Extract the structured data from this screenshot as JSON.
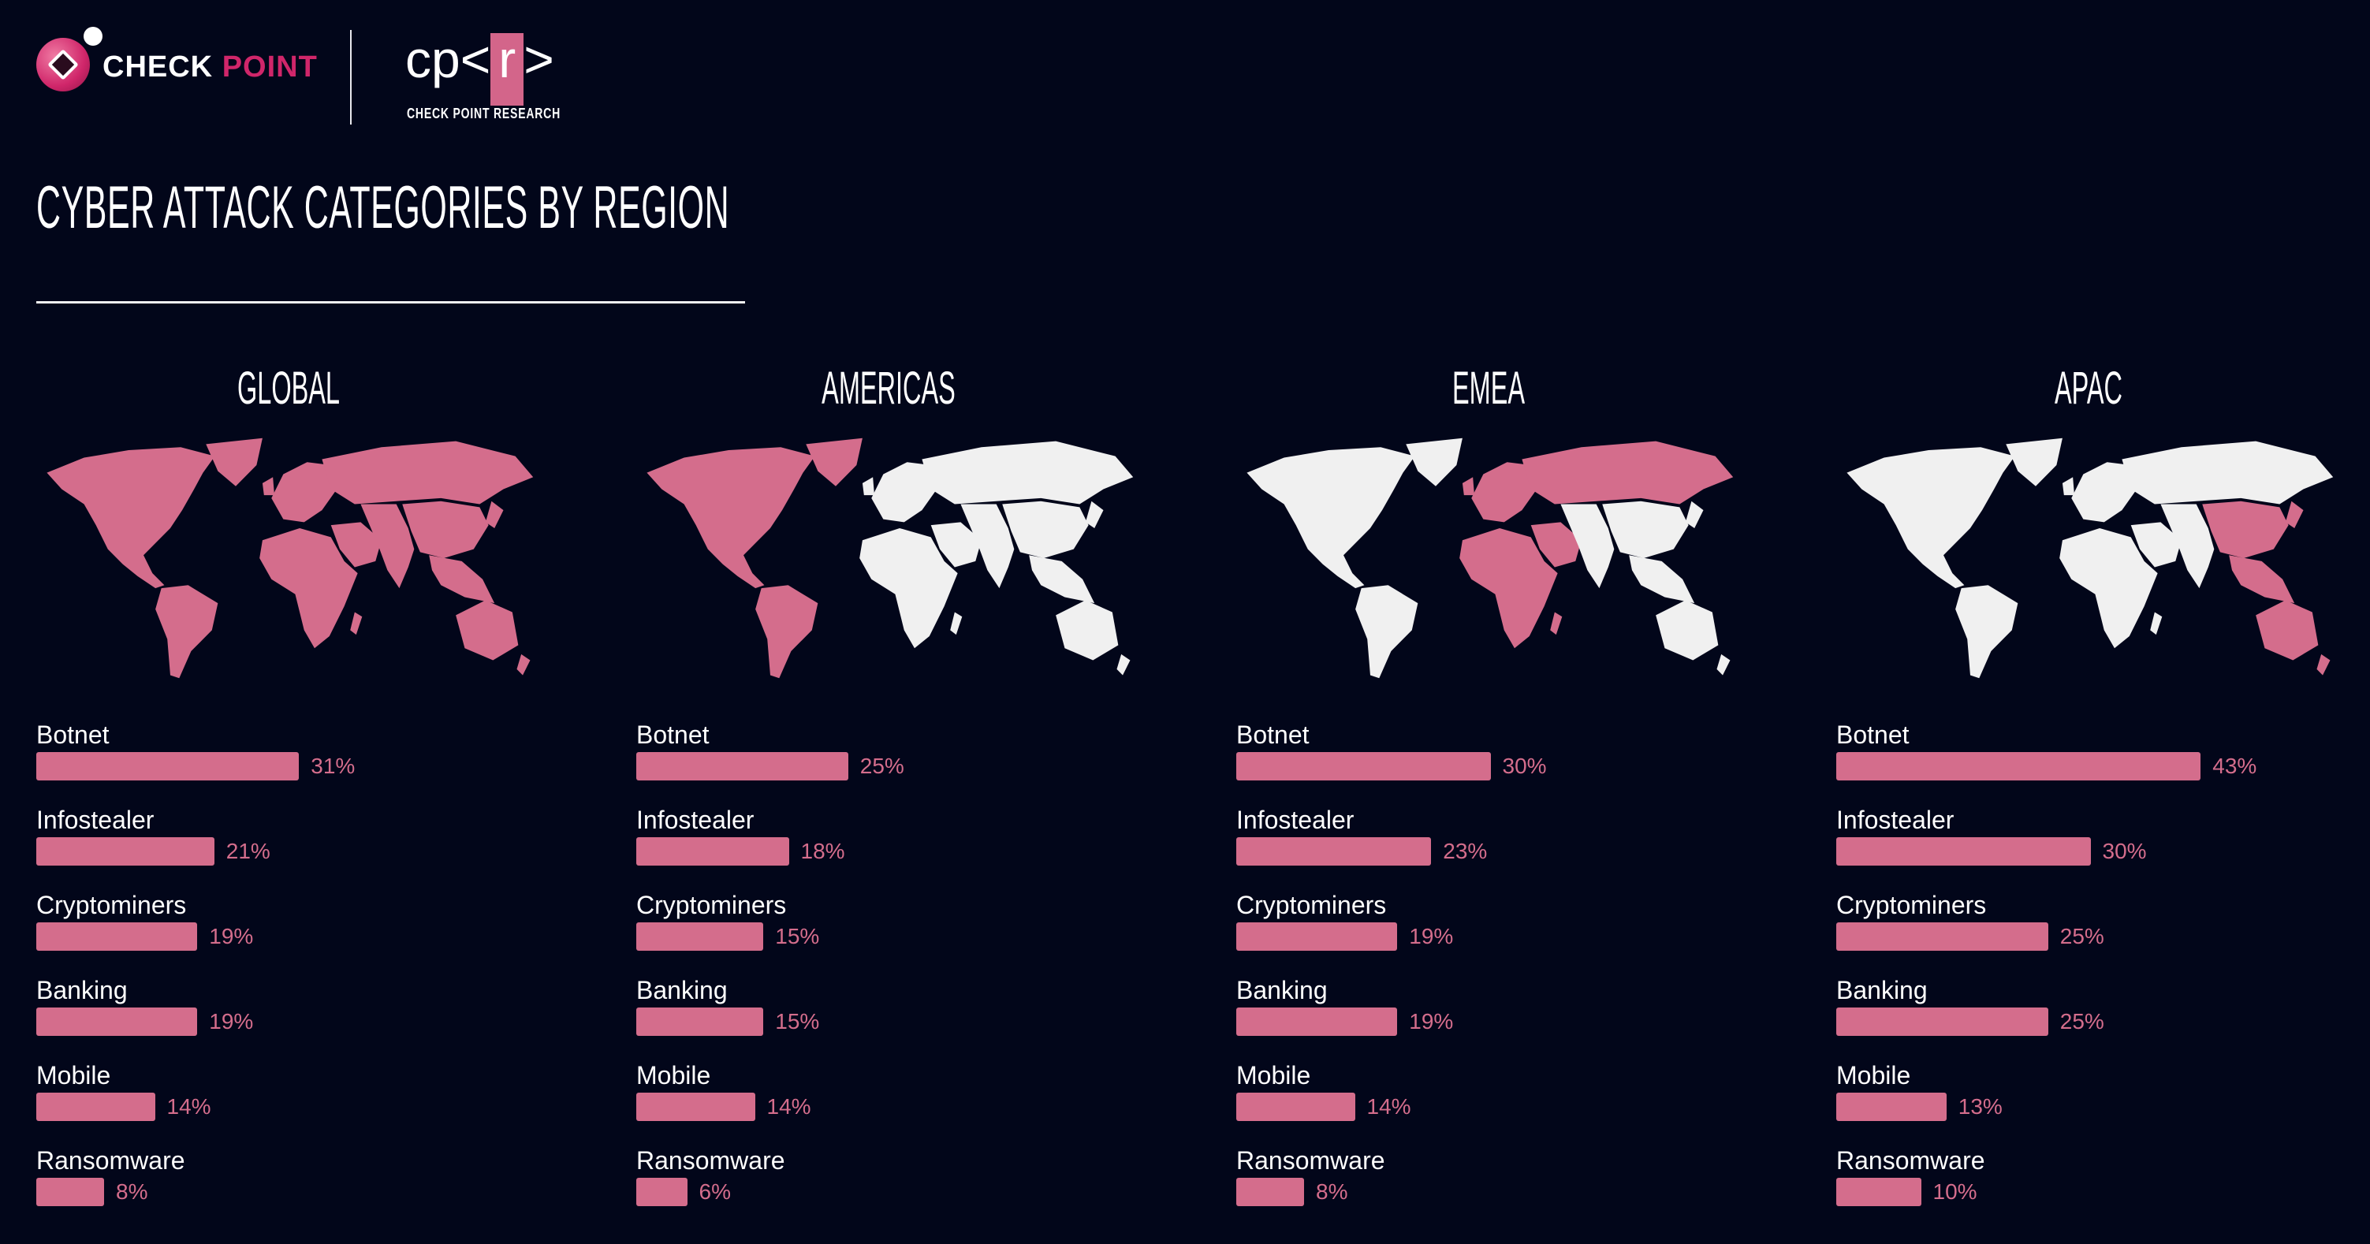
{
  "header": {
    "logo_text_1": "CHECK",
    "logo_text_2": "POINT",
    "research_logo_prefix": "cp<",
    "research_logo_box": "r",
    "research_logo_suffix": ">",
    "research_logo_caption": "CHECK POINT RESEARCH"
  },
  "colors": {
    "background": "#02061a",
    "bar": "#d46d8c",
    "highlight": "#d46d8c",
    "land": "#f0f0f0",
    "brand": "#d0266a"
  },
  "chart_data": {
    "type": "bar",
    "orientation": "horizontal",
    "title": "CYBER ATTACK CATEGORIES BY REGION",
    "unit": "%",
    "categories": [
      "Botnet",
      "Infostealer",
      "Cryptominers",
      "Banking",
      "Mobile",
      "Ransomware"
    ],
    "panels": [
      {
        "region": "GLOBAL",
        "highlighted": [
          "americas",
          "emea",
          "apac",
          "other"
        ],
        "values": [
          31,
          21,
          19,
          19,
          14,
          8
        ],
        "labels": [
          "31%",
          "21%",
          "19%",
          "19%",
          "14%",
          "8%"
        ]
      },
      {
        "region": "AMERICAS",
        "highlighted": [
          "americas"
        ],
        "values": [
          25,
          18,
          15,
          15,
          14,
          6
        ],
        "labels": [
          "25%",
          "18%",
          "15%",
          "15%",
          "14%",
          "6%"
        ]
      },
      {
        "region": "EMEA",
        "highlighted": [
          "emea"
        ],
        "values": [
          30,
          23,
          19,
          19,
          14,
          8
        ],
        "labels": [
          "30%",
          "23%",
          "19%",
          "19%",
          "14%",
          "8%"
        ]
      },
      {
        "region": "APAC",
        "highlighted": [
          "apac"
        ],
        "values": [
          43,
          30,
          25,
          25,
          13,
          10
        ],
        "labels": [
          "43%",
          "30%",
          "25%",
          "25%",
          "13%",
          "10%"
        ]
      }
    ]
  }
}
